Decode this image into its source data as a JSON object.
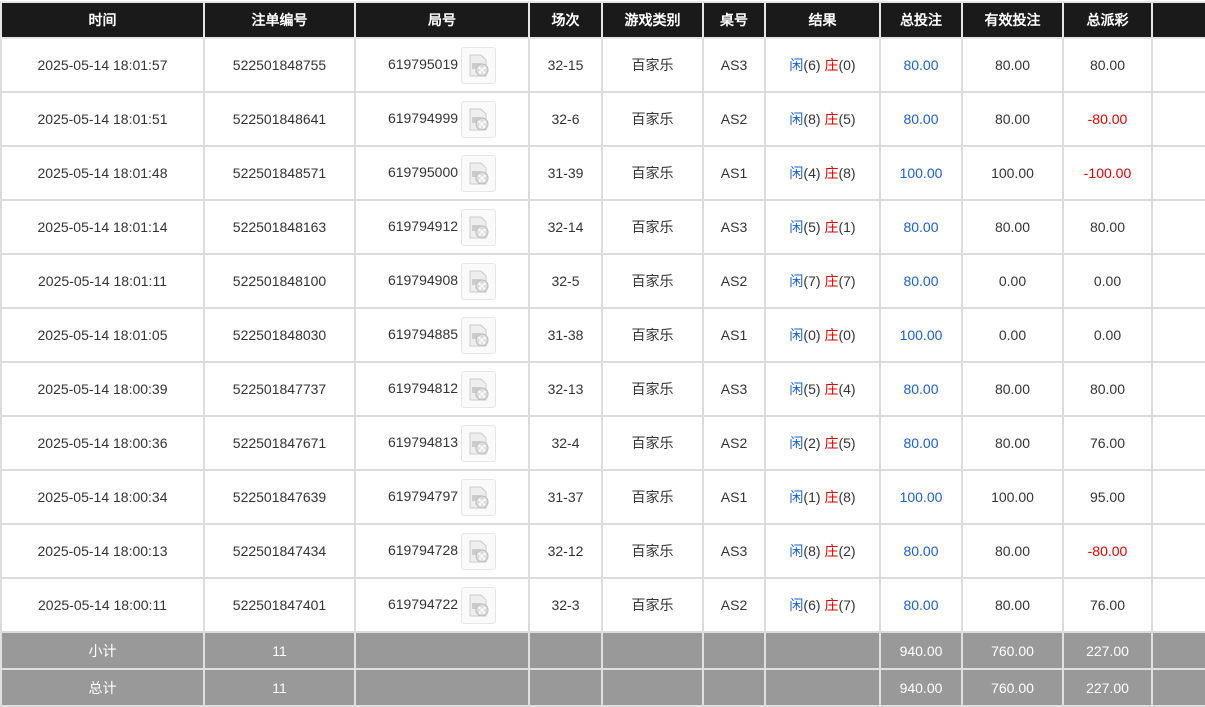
{
  "headers": [
    "时间",
    "注单编号",
    "局号",
    "场次",
    "游戏类别",
    "桌号",
    "结果",
    "总投注",
    "有效投注",
    "总派彩",
    ""
  ],
  "colors": {
    "header_bg": "#1a1a1a",
    "summary_bg": "#999999",
    "player": "#1a5fd0",
    "banker": "#e00000"
  },
  "player_label": "闲",
  "banker_label": "庄",
  "rows": [
    {
      "time": "2025-05-14 18:01:57",
      "bet_id": "522501848755",
      "round": "619795019",
      "session": "32-15",
      "game": "百家乐",
      "table": "AS3",
      "player": "(6)",
      "banker": "(0)",
      "total": "80.00",
      "valid": "80.00",
      "payout": "80.00",
      "neg": false
    },
    {
      "time": "2025-05-14 18:01:51",
      "bet_id": "522501848641",
      "round": "619794999",
      "session": "32-6",
      "game": "百家乐",
      "table": "AS2",
      "player": "(8)",
      "banker": "(5)",
      "total": "80.00",
      "valid": "80.00",
      "payout": "-80.00",
      "neg": true
    },
    {
      "time": "2025-05-14 18:01:48",
      "bet_id": "522501848571",
      "round": "619795000",
      "session": "31-39",
      "game": "百家乐",
      "table": "AS1",
      "player": "(4)",
      "banker": "(8)",
      "total": "100.00",
      "valid": "100.00",
      "payout": "-100.00",
      "neg": true
    },
    {
      "time": "2025-05-14 18:01:14",
      "bet_id": "522501848163",
      "round": "619794912",
      "session": "32-14",
      "game": "百家乐",
      "table": "AS3",
      "player": "(5)",
      "banker": "(1)",
      "total": "80.00",
      "valid": "80.00",
      "payout": "80.00",
      "neg": false
    },
    {
      "time": "2025-05-14 18:01:11",
      "bet_id": "522501848100",
      "round": "619794908",
      "session": "32-5",
      "game": "百家乐",
      "table": "AS2",
      "player": "(7)",
      "banker": "(7)",
      "total": "80.00",
      "valid": "0.00",
      "payout": "0.00",
      "neg": false
    },
    {
      "time": "2025-05-14 18:01:05",
      "bet_id": "522501848030",
      "round": "619794885",
      "session": "31-38",
      "game": "百家乐",
      "table": "AS1",
      "player": "(0)",
      "banker": "(0)",
      "total": "100.00",
      "valid": "0.00",
      "payout": "0.00",
      "neg": false
    },
    {
      "time": "2025-05-14 18:00:39",
      "bet_id": "522501847737",
      "round": "619794812",
      "session": "32-13",
      "game": "百家乐",
      "table": "AS3",
      "player": "(5)",
      "banker": "(4)",
      "total": "80.00",
      "valid": "80.00",
      "payout": "80.00",
      "neg": false
    },
    {
      "time": "2025-05-14 18:00:36",
      "bet_id": "522501847671",
      "round": "619794813",
      "session": "32-4",
      "game": "百家乐",
      "table": "AS2",
      "player": "(2)",
      "banker": "(5)",
      "total": "80.00",
      "valid": "80.00",
      "payout": "76.00",
      "neg": false
    },
    {
      "time": "2025-05-14 18:00:34",
      "bet_id": "522501847639",
      "round": "619794797",
      "session": "31-37",
      "game": "百家乐",
      "table": "AS1",
      "player": "(1)",
      "banker": "(8)",
      "total": "100.00",
      "valid": "100.00",
      "payout": "95.00",
      "neg": false
    },
    {
      "time": "2025-05-14 18:00:13",
      "bet_id": "522501847434",
      "round": "619794728",
      "session": "32-12",
      "game": "百家乐",
      "table": "AS3",
      "player": "(8)",
      "banker": "(2)",
      "total": "80.00",
      "valid": "80.00",
      "payout": "-80.00",
      "neg": true
    },
    {
      "time": "2025-05-14 18:00:11",
      "bet_id": "522501847401",
      "round": "619794722",
      "session": "32-3",
      "game": "百家乐",
      "table": "AS2",
      "player": "(6)",
      "banker": "(7)",
      "total": "80.00",
      "valid": "80.00",
      "payout": "76.00",
      "neg": false
    }
  ],
  "summary": [
    {
      "label": "小计",
      "count": "11",
      "total": "940.00",
      "valid": "760.00",
      "payout": "227.00"
    },
    {
      "label": "总计",
      "count": "11",
      "total": "940.00",
      "valid": "760.00",
      "payout": "227.00"
    }
  ]
}
